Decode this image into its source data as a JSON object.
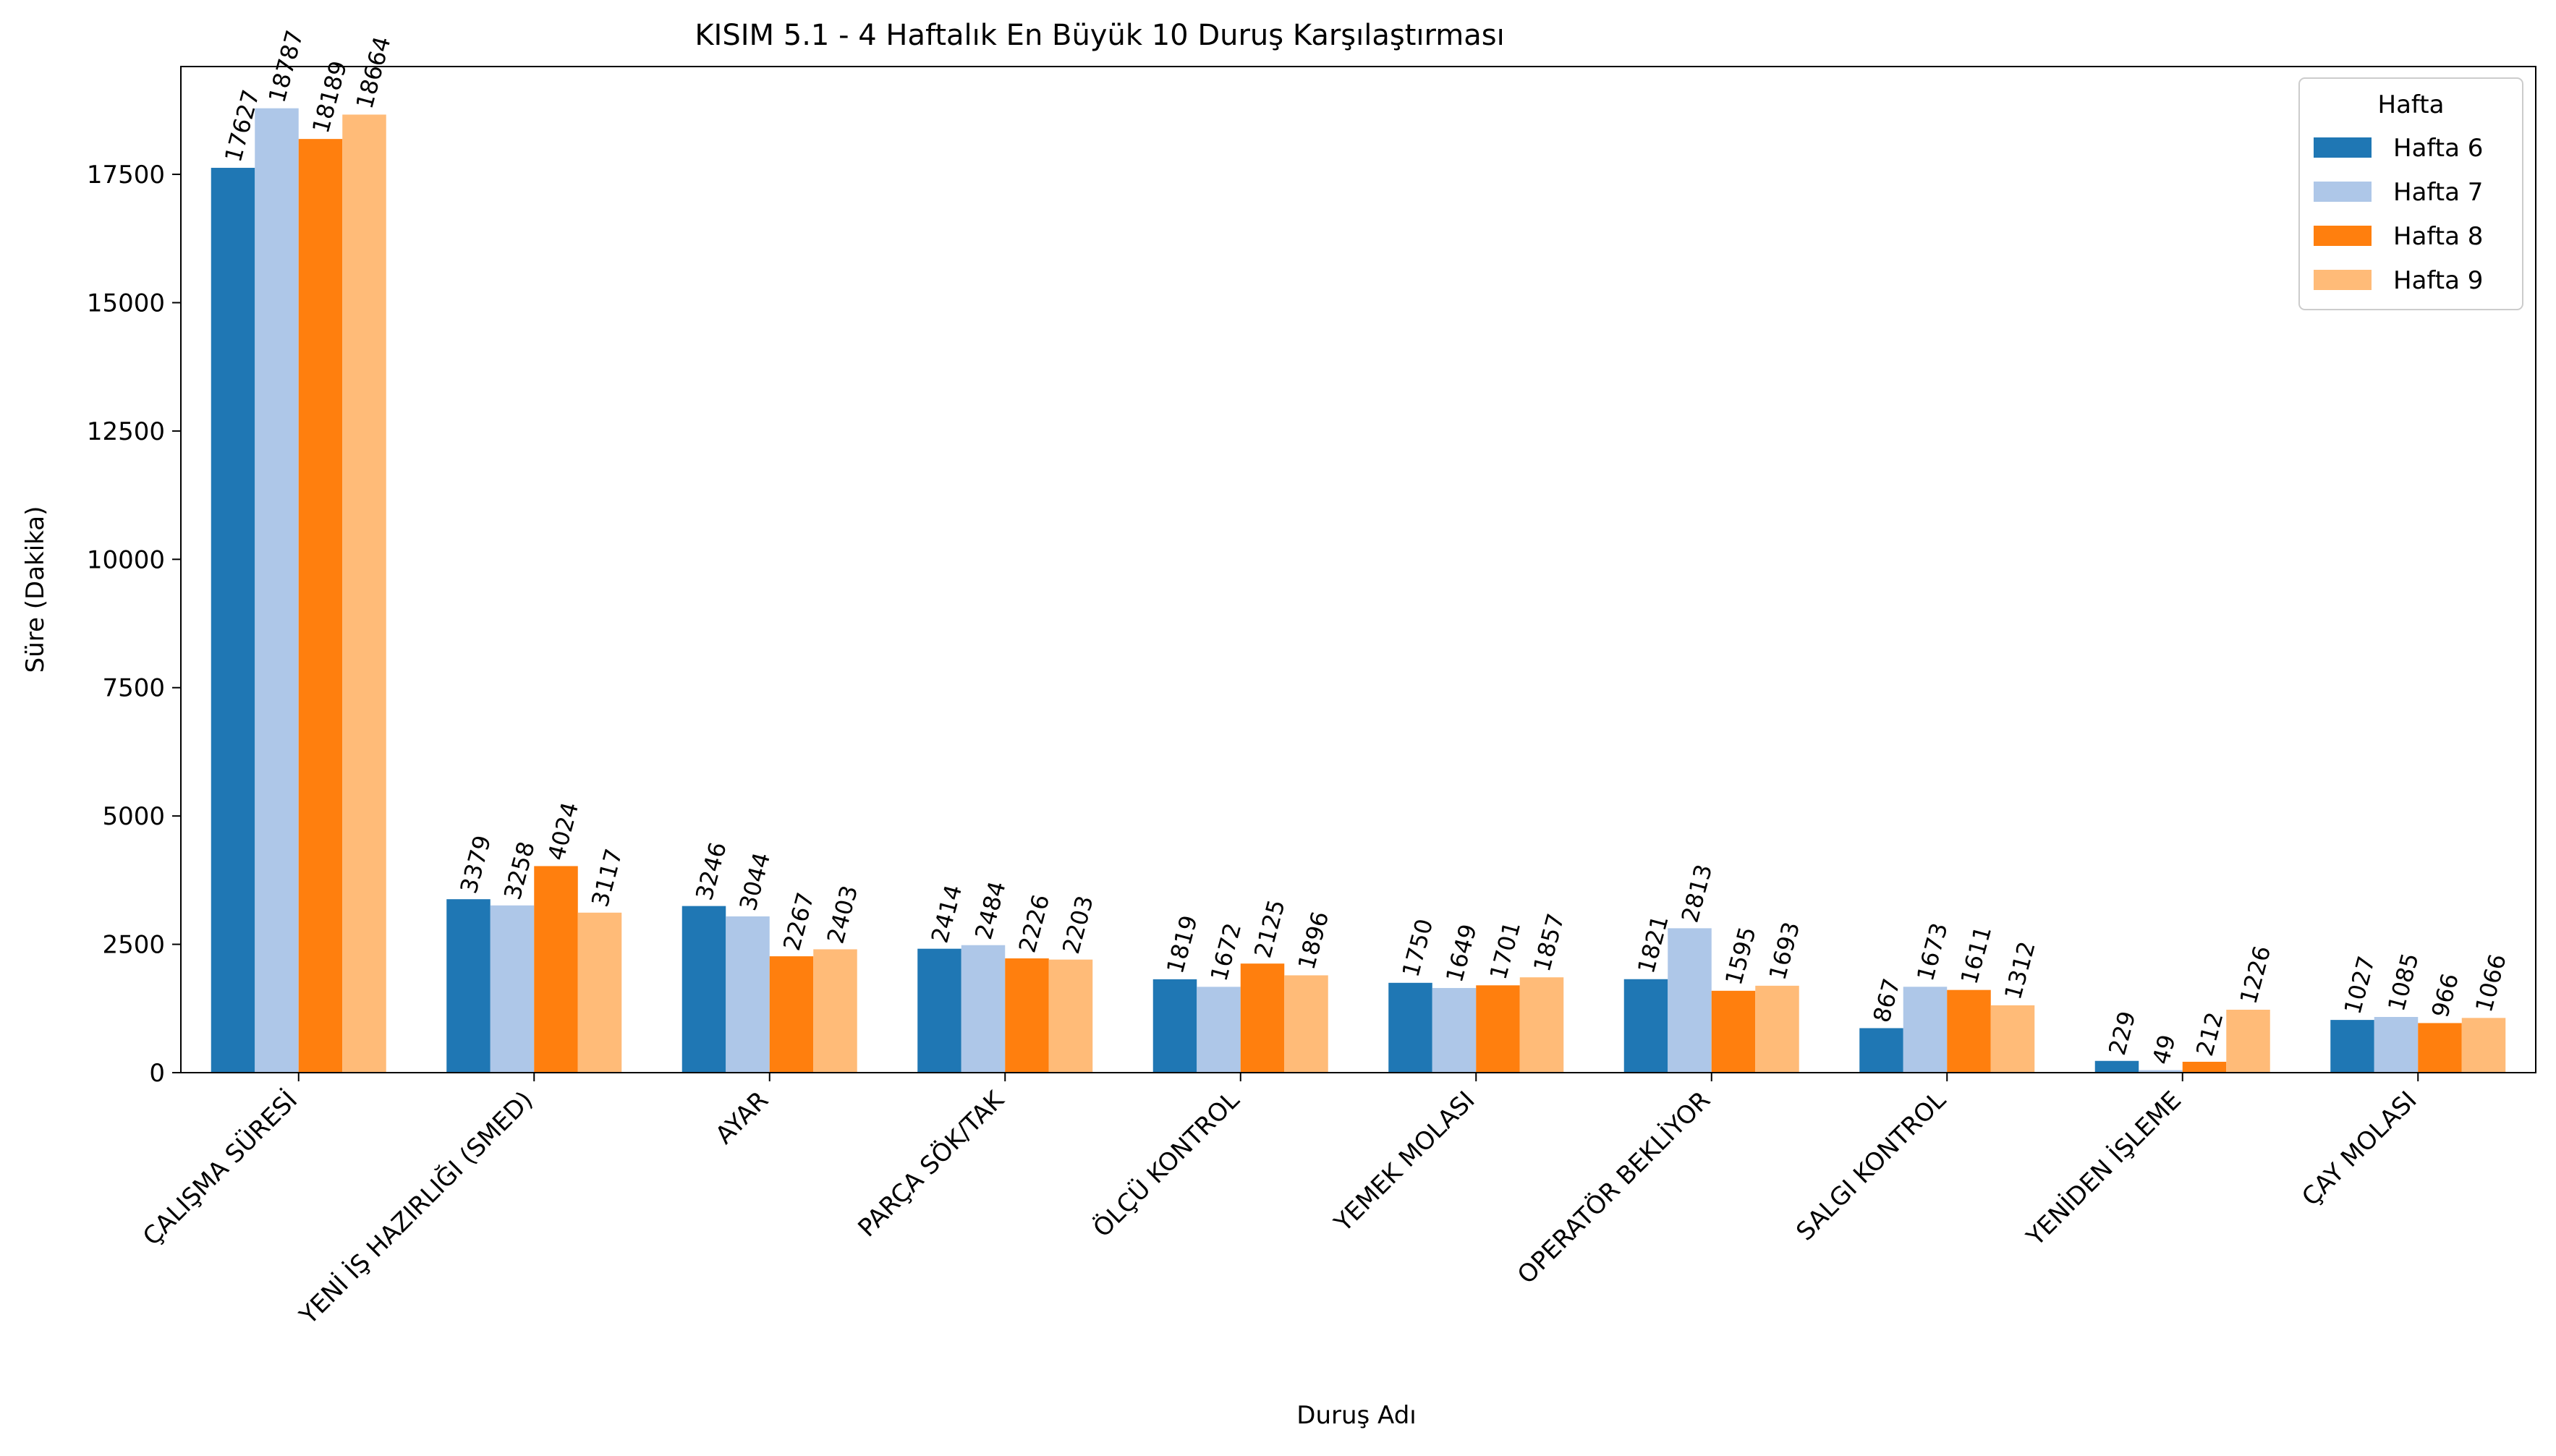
{
  "chart_data": {
    "type": "bar",
    "title": "KISIM 5.1 - 4 Haftalık En Büyük 10 Duruş Karşılaştırması",
    "xlabel": "Duruş Adı",
    "ylabel": "Süre (Dakika)",
    "ylim": [
      0,
      19600
    ],
    "yticks": [
      0,
      2500,
      5000,
      7500,
      10000,
      12500,
      15000,
      17500
    ],
    "grid": false,
    "legend": {
      "title": "Hafta",
      "position": "top-right"
    },
    "categories": [
      "ÇALIŞMA SÜRESİ",
      "YENİ İŞ HAZIRLIĞI (SMED)",
      "AYAR",
      "PARÇA SÖK/TAK",
      "ÖLÇÜ KONTROL",
      "YEMEK MOLASI",
      "OPERATÖR BEKLİYOR",
      "SALGI KONTROL",
      "YENİDEN İŞLEME",
      "ÇAY MOLASI"
    ],
    "series": [
      {
        "name": "Hafta 6",
        "color": "#1f77b4",
        "values": [
          17627,
          3379,
          3246,
          2414,
          1819,
          1750,
          1821,
          867,
          229,
          1027
        ]
      },
      {
        "name": "Hafta 7",
        "color": "#aec7e8",
        "values": [
          18787,
          3258,
          3044,
          2484,
          1672,
          1649,
          2813,
          1673,
          49,
          1085
        ]
      },
      {
        "name": "Hafta 8",
        "color": "#ff7f0e",
        "values": [
          18189,
          4024,
          2267,
          2226,
          2125,
          1701,
          1595,
          1611,
          212,
          966
        ]
      },
      {
        "name": "Hafta 9",
        "color": "#ffbb78",
        "values": [
          18664,
          3117,
          2403,
          2203,
          1896,
          1857,
          1693,
          1312,
          1226,
          1066
        ]
      }
    ]
  }
}
